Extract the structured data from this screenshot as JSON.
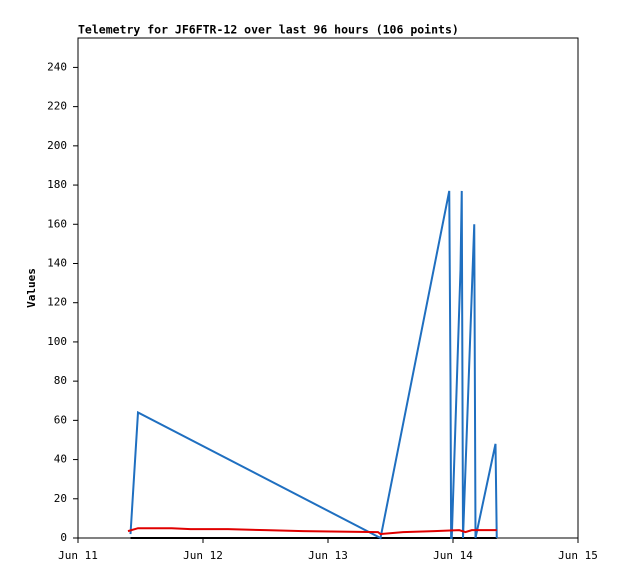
{
  "chart_data": {
    "type": "line",
    "title": "Telemetry for JF6FTR-12 over last 96 hours (106 points)",
    "y_label": "Values",
    "xlim": [
      11,
      15
    ],
    "xticks": [
      {
        "value": 11,
        "label": "Jun 11"
      },
      {
        "value": 12,
        "label": "Jun 12"
      },
      {
        "value": 13,
        "label": "Jun 13"
      },
      {
        "value": 14,
        "label": "Jun 14"
      },
      {
        "value": 15,
        "label": "Jun 15"
      }
    ],
    "ylim": [
      0,
      255
    ],
    "yticks": [
      0,
      20,
      40,
      60,
      80,
      100,
      120,
      140,
      160,
      180,
      200,
      220,
      240
    ],
    "grid": false,
    "series": [
      {
        "color": "#000000",
        "x": [
          11.42,
          14.35
        ],
        "values": [
          0,
          0
        ]
      },
      {
        "color": "#1f6fc0",
        "x": [
          11.42,
          11.48,
          13.42,
          13.97,
          13.98,
          13.985,
          13.99,
          14.06,
          14.07,
          14.08,
          14.17,
          14.18,
          14.34,
          14.35
        ],
        "values": [
          2,
          64,
          0,
          177,
          80,
          0,
          0,
          137,
          177,
          0,
          160,
          0,
          48,
          0
        ]
      },
      {
        "color": "#e00000",
        "x": [
          11.4,
          11.48,
          11.75,
          11.9,
          12.2,
          12.5,
          12.8,
          13.4,
          13.42,
          13.6,
          13.85,
          14.05,
          14.1,
          14.15,
          14.2,
          14.35
        ],
        "values": [
          3.5,
          5,
          5,
          4.5,
          4.5,
          4,
          3.5,
          3,
          2,
          3,
          3.5,
          4,
          3,
          4,
          4,
          4
        ]
      }
    ]
  }
}
